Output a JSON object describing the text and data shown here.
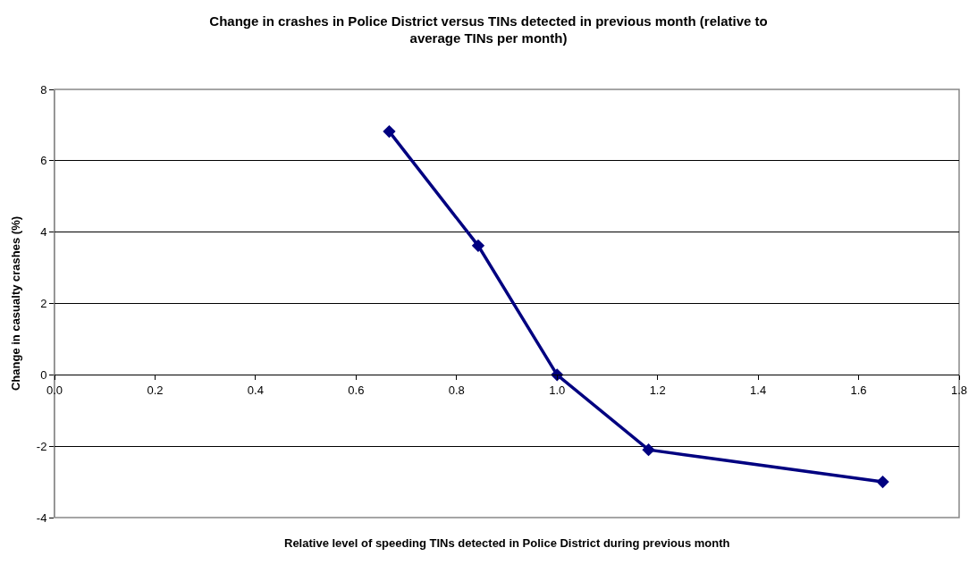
{
  "chart_data": {
    "type": "line",
    "title": "Change in crashes in Police District versus TINs detected in previous month (relative to average TINs per month)",
    "xlabel": "Relative level of speeding TINs detected in Police District during previous month",
    "ylabel": "Change in casualty crashes (%)",
    "x": [
      0.666,
      0.843,
      1.0,
      1.182,
      1.648
    ],
    "series": [
      {
        "color": "#000080",
        "values": [
          6.82,
          3.62,
          0.0,
          -2.1,
          -3.0
        ]
      }
    ],
    "xlim": [
      0,
      1.8
    ],
    "xticks": [
      {
        "value": 0,
        "label": "0.0"
      },
      {
        "value": 0.2,
        "label": "0.2"
      },
      {
        "value": 0.4,
        "label": "0.4"
      },
      {
        "value": 0.6,
        "label": "0.6"
      },
      {
        "value": 0.8,
        "label": "0.8"
      },
      {
        "value": 1.0,
        "label": "1.0"
      },
      {
        "value": 1.2,
        "label": "1.2"
      },
      {
        "value": 1.4,
        "label": "1.4"
      },
      {
        "value": 1.6,
        "label": "1.6"
      },
      {
        "value": 1.8,
        "label": "1.8"
      }
    ],
    "ylim": [
      -4,
      8
    ],
    "yticks": [
      -4,
      -2,
      0,
      2,
      4,
      6,
      8
    ],
    "grid": "y",
    "marker": "diamond",
    "line_style": "solid"
  }
}
